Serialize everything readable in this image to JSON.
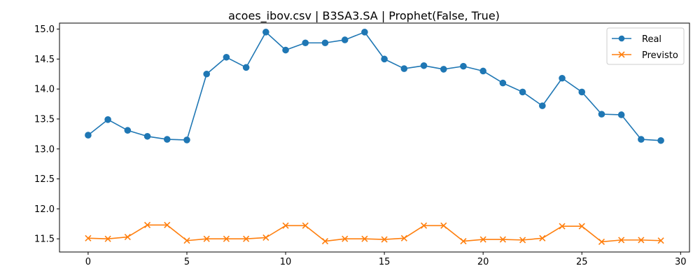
{
  "chart_data": {
    "type": "line",
    "title": "acoes_ibov.csv | B3SA3.SA | Prophet(False, True)",
    "xlabel": "",
    "ylabel": "",
    "xlim": [
      -1.45,
      30.45
    ],
    "ylim": [
      11.28,
      15.1
    ],
    "xticks": [
      0,
      5,
      10,
      15,
      20,
      25,
      30
    ],
    "yticks": [
      11.5,
      12.0,
      12.5,
      13.0,
      13.5,
      14.0,
      14.5,
      15.0
    ],
    "xtick_labels": [
      "0",
      "5",
      "10",
      "15",
      "20",
      "25",
      "30"
    ],
    "ytick_labels": [
      "11.5",
      "12.0",
      "12.5",
      "13.0",
      "13.5",
      "14.0",
      "14.5",
      "15.0"
    ],
    "grid": false,
    "legend_position": "top-right",
    "x": [
      0,
      1,
      2,
      3,
      4,
      5,
      6,
      7,
      8,
      9,
      10,
      11,
      12,
      13,
      14,
      15,
      16,
      17,
      18,
      19,
      20,
      21,
      22,
      23,
      24,
      25,
      26,
      27,
      28,
      29
    ],
    "series": [
      {
        "name": "Real",
        "color": "#1f77b4",
        "marker": "circle",
        "values": [
          13.23,
          13.49,
          13.31,
          13.21,
          13.16,
          13.15,
          14.25,
          14.53,
          14.36,
          14.95,
          14.65,
          14.77,
          14.77,
          14.82,
          14.95,
          14.5,
          14.34,
          14.39,
          14.33,
          14.38,
          14.3,
          14.1,
          13.95,
          13.72,
          14.18,
          13.95,
          13.58,
          13.57,
          13.16,
          13.14
        ]
      },
      {
        "name": "Previsto",
        "color": "#ff7f0e",
        "marker": "x",
        "values": [
          11.51,
          11.5,
          11.53,
          11.73,
          11.73,
          11.47,
          11.5,
          11.5,
          11.5,
          11.52,
          11.72,
          11.72,
          11.46,
          11.5,
          11.5,
          11.49,
          11.51,
          11.72,
          11.72,
          11.46,
          11.49,
          11.49,
          11.48,
          11.51,
          11.71,
          11.71,
          11.45,
          11.48,
          11.48,
          11.47
        ]
      }
    ]
  }
}
